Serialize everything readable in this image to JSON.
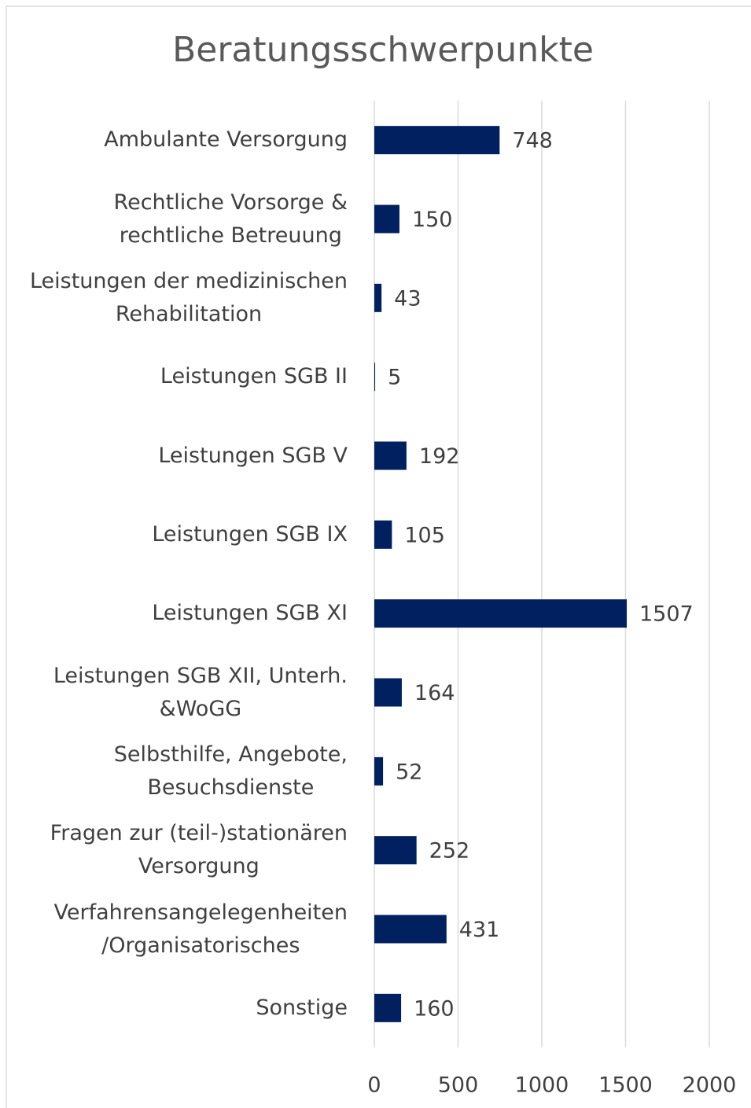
{
  "chart_data": {
    "type": "barh",
    "title": "Beratungsschwerpunkte",
    "categories": [
      "Ambulante Versorgung",
      "Rechtliche Vorsorge &\nrechtliche Betreuung",
      "Leistungen der medizinischen\nRehabilitation",
      "Leistungen SGB II",
      "Leistungen SGB V",
      "Leistungen SGB IX",
      "Leistungen SGB XI",
      "Leistungen SGB XII, Unterh.\n&WoGG",
      "Selbsthilfe, Angebote,\nBesuchsdienste",
      "Fragen zur (teil-)stationären\nVersorgung",
      "Verfahrensangelegenheiten\n/Organisatorisches",
      "Sonstige"
    ],
    "values": [
      748,
      150,
      43,
      5,
      192,
      105,
      1507,
      164,
      52,
      252,
      431,
      160
    ],
    "color": "#002060",
    "xlim": [
      0,
      2000
    ],
    "xticks": [
      0,
      500,
      1000,
      1500,
      2000
    ],
    "grid": true
  }
}
